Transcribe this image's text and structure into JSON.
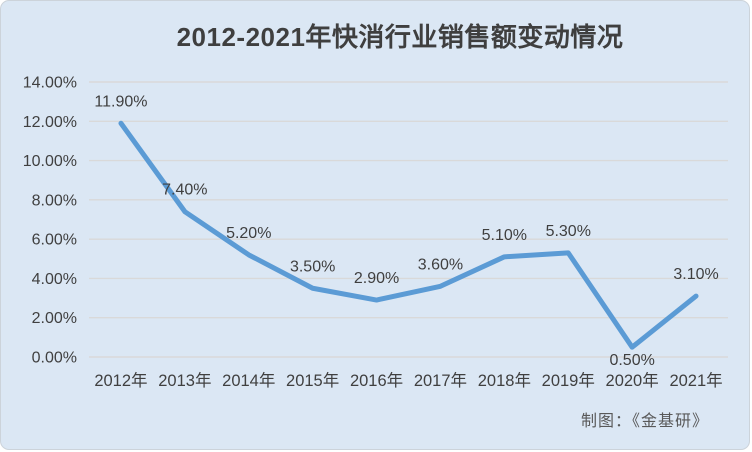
{
  "title": "2012-2021年快消行业销售额变动情况",
  "credit": "制图：《金基研》",
  "colors": {
    "panel_background": "#dbe7f4",
    "line": "#5b9bd5",
    "gridline": "#d9d9d9",
    "axis_text": "#404040",
    "data_label_text": "#3f3f3f",
    "title_text": "#3f3f3f",
    "credit_text": "#595959"
  },
  "chart_data": {
    "type": "line",
    "title": "2012-2021年快消行业销售额变动情况",
    "categories": [
      "2012年",
      "2013年",
      "2014年",
      "2015年",
      "2016年",
      "2017年",
      "2018年",
      "2019年",
      "2020年",
      "2021年"
    ],
    "values": [
      11.9,
      7.4,
      5.2,
      3.5,
      2.9,
      3.6,
      5.1,
      5.3,
      0.5,
      3.1
    ],
    "data_labels": [
      "11.90%",
      "7.40%",
      "5.20%",
      "3.50%",
      "2.90%",
      "3.60%",
      "5.10%",
      "5.30%",
      "0.50%",
      "3.10%"
    ],
    "label_below_indices": [
      8
    ],
    "y_ticks": [
      "14.00%",
      "12.00%",
      "10.00%",
      "8.00%",
      "6.00%",
      "4.00%",
      "2.00%",
      "0.00%"
    ],
    "ylim": [
      0,
      14
    ],
    "y_step": 2,
    "xlabel": "",
    "ylabel": "",
    "grid": true,
    "legend": "none"
  }
}
